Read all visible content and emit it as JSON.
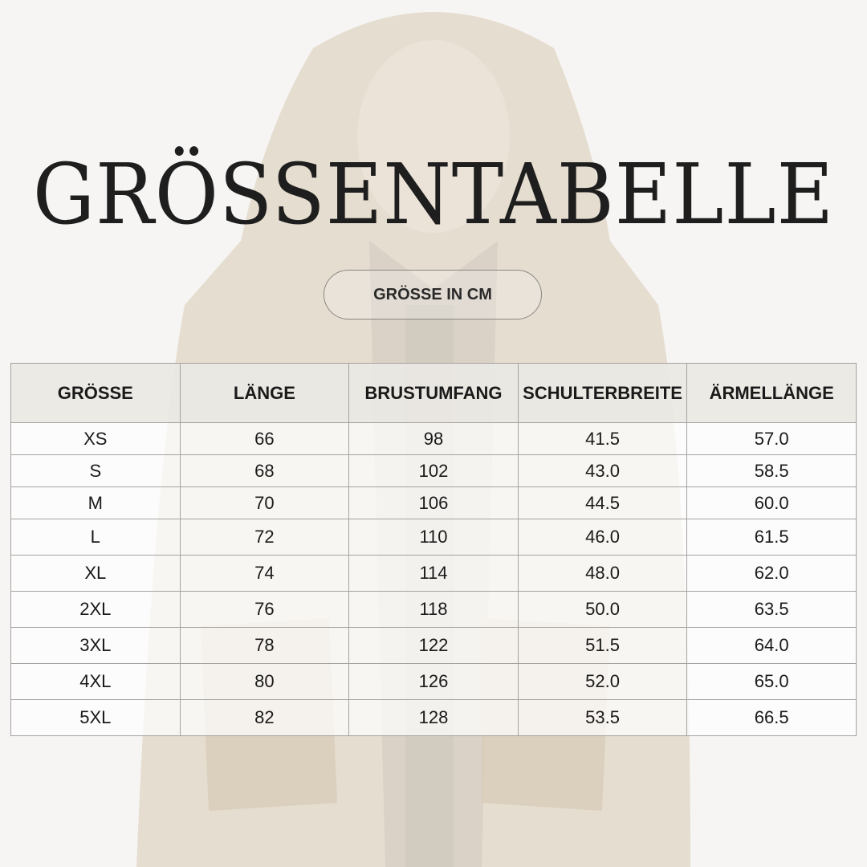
{
  "title": "GRÖSSENTABELLE",
  "subtitle": "GRÖSSE IN CM",
  "table": {
    "headers": [
      "GRÖSSE",
      "LÄNGE",
      "BRUSTUMFANG",
      "SCHULTERBREITE",
      "ÄRMELLÄNGE"
    ],
    "rows": [
      [
        "XS",
        "66",
        "98",
        "41.5",
        "57.0"
      ],
      [
        "S",
        "68",
        "102",
        "43.0",
        "58.5"
      ],
      [
        "M",
        "70",
        "106",
        "44.5",
        "60.0"
      ],
      [
        "L",
        "72",
        "110",
        "46.0",
        "61.5"
      ],
      [
        "XL",
        "74",
        "114",
        "48.0",
        "62.0"
      ],
      [
        "2XL",
        "76",
        "118",
        "50.0",
        "63.5"
      ],
      [
        "3XL",
        "78",
        "122",
        "51.5",
        "64.0"
      ],
      [
        "4XL",
        "80",
        "126",
        "52.0",
        "65.0"
      ],
      [
        "5XL",
        "82",
        "128",
        "53.5",
        "66.5"
      ]
    ]
  },
  "colors": {
    "background": "#f6f5f3",
    "jacket": "#d9cdb8",
    "text": "#1e1e1e"
  }
}
